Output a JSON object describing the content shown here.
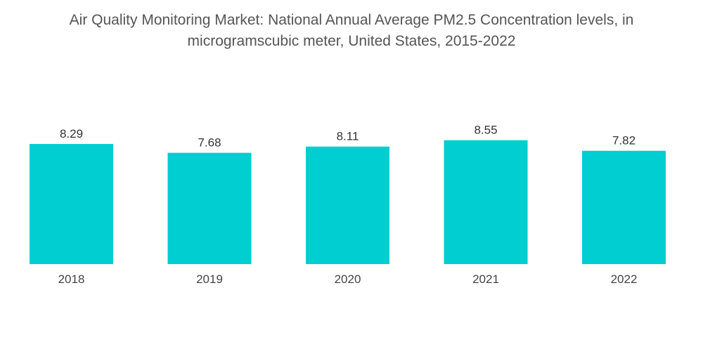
{
  "chart_data": {
    "type": "bar",
    "title": "Air Quality Monitoring Market: National Annual Average PM2.5 Concentration levels, in microgramscubic meter, United States, 2015-2022",
    "title_lines": [
      "Air Quality Monitoring Market: National Annual Average PM2.5 Concentration levels, in",
      "microgramscubic meter, United States, 2015-2022"
    ],
    "xlabel": "",
    "ylabel": "",
    "categories": [
      "2018",
      "2019",
      "2020",
      "2021",
      "2022"
    ],
    "values": [
      8.29,
      7.68,
      8.11,
      8.55,
      7.82
    ],
    "value_labels": [
      "8.29",
      "7.68",
      "8.11",
      "8.55",
      "7.82"
    ],
    "ylim": [
      0,
      8.55
    ],
    "grid": false,
    "legend": "none",
    "bar_color": "#00CED1"
  }
}
